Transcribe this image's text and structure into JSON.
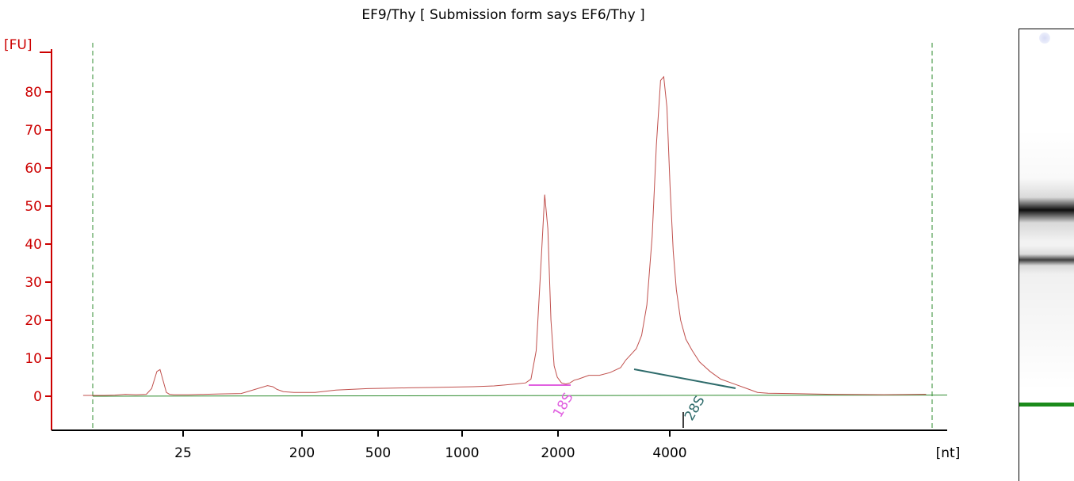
{
  "chart_data": {
    "type": "line",
    "title": "EF9/Thy  [ Submission form says EF6/Thy ]",
    "ylabel": "[FU]",
    "xlabel": "[nt]",
    "ylim": [
      -8,
      90
    ],
    "yticks": [
      0,
      10,
      20,
      30,
      40,
      50,
      60,
      70,
      80
    ],
    "xtick_labels": [
      "25",
      "200",
      "500",
      "1000",
      "2000",
      "4000"
    ],
    "grid": false,
    "series": [
      {
        "x_scale": "time_s",
        "x": [
          19.0,
          21.0,
          22.0,
          23.0,
          24.0,
          25.0,
          25.5,
          26.0,
          26.3,
          26.6,
          26.9,
          27.2,
          27.6,
          28.0,
          29.0,
          32.0,
          34.0,
          36.5,
          37.0,
          37.4,
          38.0,
          39.0,
          41.0,
          43.0,
          46.0,
          48.0,
          50.0,
          52.0,
          54.0,
          56.0,
          58.0,
          60.0,
          61.0,
          61.5,
          62.0,
          62.4,
          62.8,
          63.1,
          63.4,
          63.7,
          64.0,
          64.4,
          64.8,
          65.2,
          65.6,
          66.0,
          67.0,
          68.0,
          69.0,
          70.0,
          70.5,
          71.0,
          71.5,
          72.0,
          72.5,
          73.0,
          73.4,
          73.8,
          74.1,
          74.4,
          74.7,
          75.0,
          75.3,
          75.7,
          76.2,
          76.8,
          77.5,
          78.5,
          79.5,
          80.5,
          82.0,
          83.0,
          84.0,
          86.0,
          90.0,
          95.0,
          99.0
        ],
        "y": [
          0.2,
          0.2,
          0.3,
          0.5,
          0.4,
          0.5,
          2.0,
          6.5,
          7.0,
          4.0,
          1.0,
          0.5,
          0.4,
          0.4,
          0.4,
          0.6,
          0.7,
          2.8,
          2.5,
          1.8,
          1.2,
          1.0,
          1.0,
          1.6,
          2.0,
          2.1,
          2.2,
          2.3,
          2.4,
          2.5,
          2.7,
          3.2,
          3.5,
          4.5,
          12.0,
          32.0,
          53.0,
          44.0,
          20.0,
          8.0,
          5.0,
          3.5,
          3.2,
          3.5,
          4.2,
          4.5,
          5.5,
          5.5,
          6.2,
          7.5,
          9.5,
          11.0,
          12.5,
          16.0,
          24.0,
          42.0,
          66.0,
          83.0,
          84.0,
          76.0,
          55.0,
          38.0,
          28.0,
          20.0,
          15.0,
          12.0,
          9.0,
          6.5,
          4.5,
          3.5,
          2.0,
          1.0,
          0.8,
          0.7,
          0.5,
          0.4,
          0.5
        ]
      }
    ],
    "baseline": 0,
    "peak_markers": [
      {
        "label": "18S",
        "color": "#e060e0"
      },
      {
        "label": "28S",
        "color": "#2e6b6b"
      }
    ]
  },
  "colors": {
    "trace": "#c0504d",
    "axis_y": "#cc0000",
    "baseline": "#2e8b2e",
    "window_lines": "#2e8b2e",
    "marker_18s": "#e060e0",
    "marker_28s": "#2e6b6b",
    "gel_band": "#000000",
    "gel_marker": "#1a8a1a"
  },
  "gel": {
    "bands": [
      {
        "pos_fraction": 0.4,
        "intensity": 0.95
      },
      {
        "pos_fraction": 0.51,
        "intensity": 0.75
      }
    ],
    "marker_pos_fraction": 0.825
  }
}
